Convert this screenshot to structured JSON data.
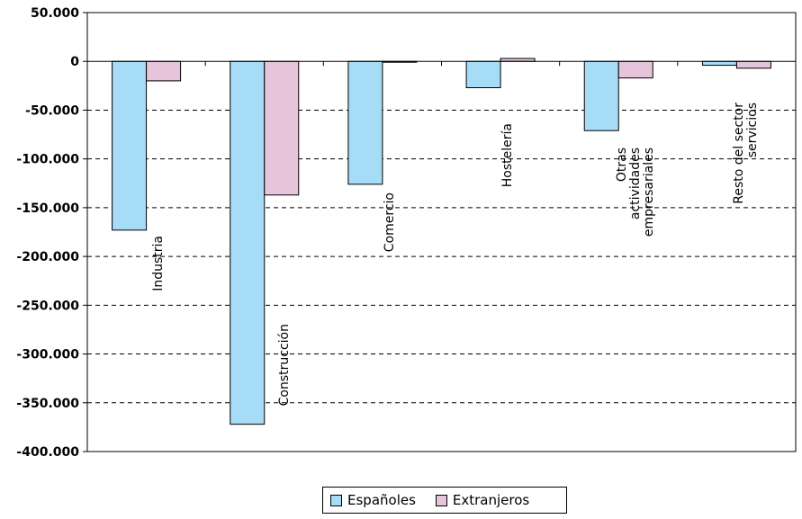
{
  "chart_data": {
    "type": "bar",
    "title": "",
    "xlabel": "",
    "ylabel": "",
    "ylim": [
      -400000,
      50000
    ],
    "yticks": [
      50000,
      0,
      -50000,
      -100000,
      -150000,
      -200000,
      -250000,
      -300000,
      -350000,
      -400000
    ],
    "ytick_labels": [
      "50.000",
      "0",
      "-50.000",
      "-100.000",
      "-150.000",
      "-200.000",
      "-250.000",
      "-300.000",
      "-350.000",
      "-400.000"
    ],
    "grid": "horizontal dashed",
    "legend_position": "bottom",
    "categories": [
      "Industria",
      "Construcción",
      "Comercio",
      "Hostelería",
      "Otras actividades empresariales",
      "Resto del sector servicios"
    ],
    "category_label_lines": [
      [
        "Industria"
      ],
      [
        "Construcción"
      ],
      [
        "Comercio"
      ],
      [
        "Hostelería"
      ],
      [
        "Otras",
        "actividades",
        "empresariales"
      ],
      [
        "Resto del sector",
        "servicios"
      ]
    ],
    "series": [
      {
        "name": "Españoles",
        "color": "#a6dcf6",
        "values": [
          -173000,
          -372000,
          -126000,
          -27000,
          -71000,
          -4000
        ]
      },
      {
        "name": "Extranjeros",
        "color": "#e6c4dc",
        "values": [
          -20000,
          -137000,
          -500,
          3000,
          -17000,
          -7000
        ]
      }
    ]
  }
}
